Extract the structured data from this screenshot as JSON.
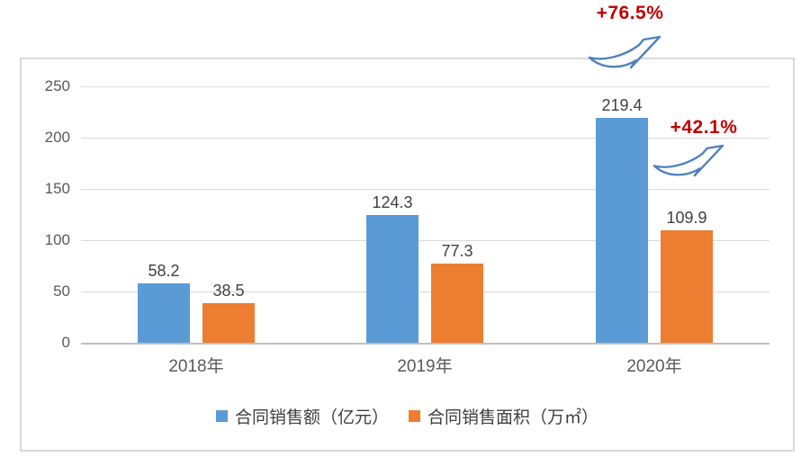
{
  "chart_data": {
    "type": "bar",
    "categories": [
      "2018年",
      "2019年",
      "2020年"
    ],
    "series": [
      {
        "name": "合同销售额（亿元）",
        "color": "#5B9BD5",
        "values": [
          58.2,
          124.3,
          219.4
        ]
      },
      {
        "name": "合同销售面积（万㎡）",
        "color": "#ED7D31",
        "values": [
          38.5,
          77.3,
          109.9
        ]
      }
    ],
    "data_labels": {
      "合同销售额（亿元）": [
        "58.2",
        "124.3",
        "219.4"
      ],
      "合同销售面积（万㎡）": [
        "38.5",
        "77.3",
        "109.9"
      ]
    },
    "title": "",
    "xlabel": "",
    "ylabel": "",
    "ylim": [
      0,
      250
    ],
    "yticks": [
      "0",
      "50",
      "100",
      "150",
      "200",
      "250"
    ],
    "grid": true,
    "legend_position": "bottom",
    "annotations": [
      {
        "text": "+76.5%",
        "color": "#C00000",
        "applies_to": "合同销售额（亿元） 2020年",
        "icon": "growth-arrow-icon"
      },
      {
        "text": "+42.1%",
        "color": "#C00000",
        "applies_to": "合同销售面积（万㎡） 2020年",
        "icon": "growth-arrow-icon"
      }
    ],
    "colors": {
      "sales_bar": "#5B9BD5",
      "area_bar": "#ED7D31",
      "annotation_red": "#C00000",
      "gridline": "#D9D9D9",
      "axis_line": "#BFBFBF",
      "arrow_stroke": "#4F81BD"
    }
  }
}
